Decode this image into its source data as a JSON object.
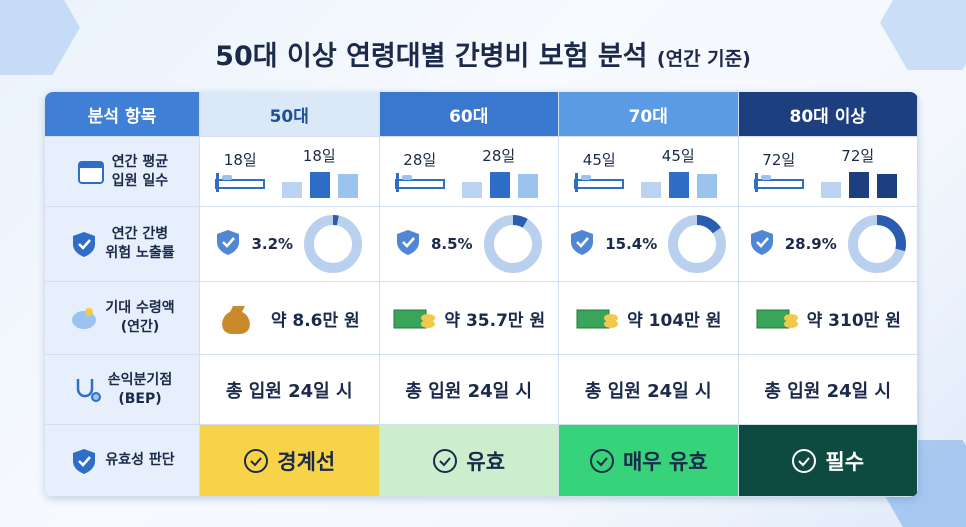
{
  "title": "50대 이상 연령대별 간병비 보험 분석",
  "subtitle": "(연간 기준)",
  "table": {
    "header": [
      "분석 항목",
      "50대",
      "60대",
      "70대",
      "80대 이상"
    ],
    "rows": [
      {
        "label": [
          "연간 평균",
          "입원 일수"
        ],
        "cells": [
          {
            "label": "18일",
            "value": 18
          },
          {
            "label": "28일",
            "value": 28
          },
          {
            "label": "45일",
            "value": 45
          },
          {
            "label": "72일",
            "value": 72
          }
        ]
      },
      {
        "label": [
          "연간 간병",
          "위험 노출률"
        ],
        "cells": [
          {
            "label": "3.2%",
            "value": 3.2
          },
          {
            "label": "8.5%",
            "value": 8.5
          },
          {
            "label": "15.4%",
            "value": 15.4
          },
          {
            "label": "28.9%",
            "value": 28.9
          }
        ]
      },
      {
        "label": [
          "기대 수령액",
          "(연간)"
        ],
        "cells": [
          "약 8.6만 원",
          "약 35.7만 원",
          "약 104만 원",
          "약 310만 원"
        ]
      },
      {
        "label": [
          "손익분기점",
          "(BEP)"
        ],
        "cells": [
          "총 입원 24일 시",
          "총 입원 24일 시",
          "총 입원 24일 시",
          "총 입원 24일 시"
        ]
      },
      {
        "label": [
          "유효성 판단"
        ],
        "cells": [
          "경계선",
          "유효",
          "매우 유효",
          "필수"
        ]
      }
    ]
  }
}
